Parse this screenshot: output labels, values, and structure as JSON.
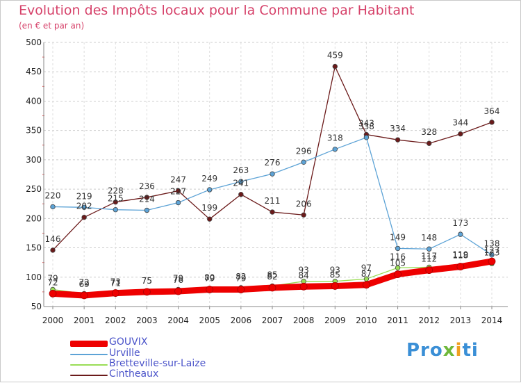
{
  "chart_data": {
    "type": "line",
    "title": "Evolution des Impôts locaux pour la Commune par Habitant",
    "subtitle": "(en € et par an)",
    "x": [
      "2000",
      "2001",
      "2002",
      "2003",
      "2004",
      "2005",
      "2006",
      "2007",
      "2008",
      "2009",
      "2010",
      "2011",
      "2012",
      "2013",
      "2014"
    ],
    "ylim": [
      50,
      500
    ],
    "yticks": [
      50,
      100,
      150,
      200,
      250,
      300,
      350,
      400,
      450,
      500
    ],
    "series": [
      {
        "name": "GOUVIX",
        "color": "#ee0000",
        "values": [
          72,
          69,
          73,
          75,
          76,
          79,
          79,
          82,
          84,
          85,
          87,
          105,
          112,
          118,
          127
        ]
      },
      {
        "name": "Urville",
        "color": "#5da3d6",
        "values": [
          220,
          219,
          215,
          214,
          227,
          249,
          263,
          276,
          296,
          318,
          338,
          149,
          148,
          173,
          138
        ]
      },
      {
        "name": "Bretteville-sur-Laize",
        "color": "#99dd55",
        "values": [
          79,
          72,
          71,
          75,
          79,
          80,
          82,
          85,
          93,
          93,
          97,
          116,
          117,
          119,
          123
        ]
      },
      {
        "name": "Cintheaux",
        "color": "#6b1a1a",
        "values": [
          146,
          202,
          228,
          236,
          247,
          199,
          241,
          211,
          206,
          459,
          343,
          334,
          328,
          344,
          364
        ]
      }
    ]
  },
  "legend": [
    {
      "label": "GOUVIX",
      "color": "#ee0000"
    },
    {
      "label": "Urville",
      "color": "#5da3d6"
    },
    {
      "label": "Bretteville-sur-Laize",
      "color": "#99dd55"
    },
    {
      "label": "Cintheaux",
      "color": "#6b1a1a"
    }
  ],
  "logo": {
    "p": "Pro",
    "x": "x",
    "i": "i",
    "t": "ti"
  }
}
